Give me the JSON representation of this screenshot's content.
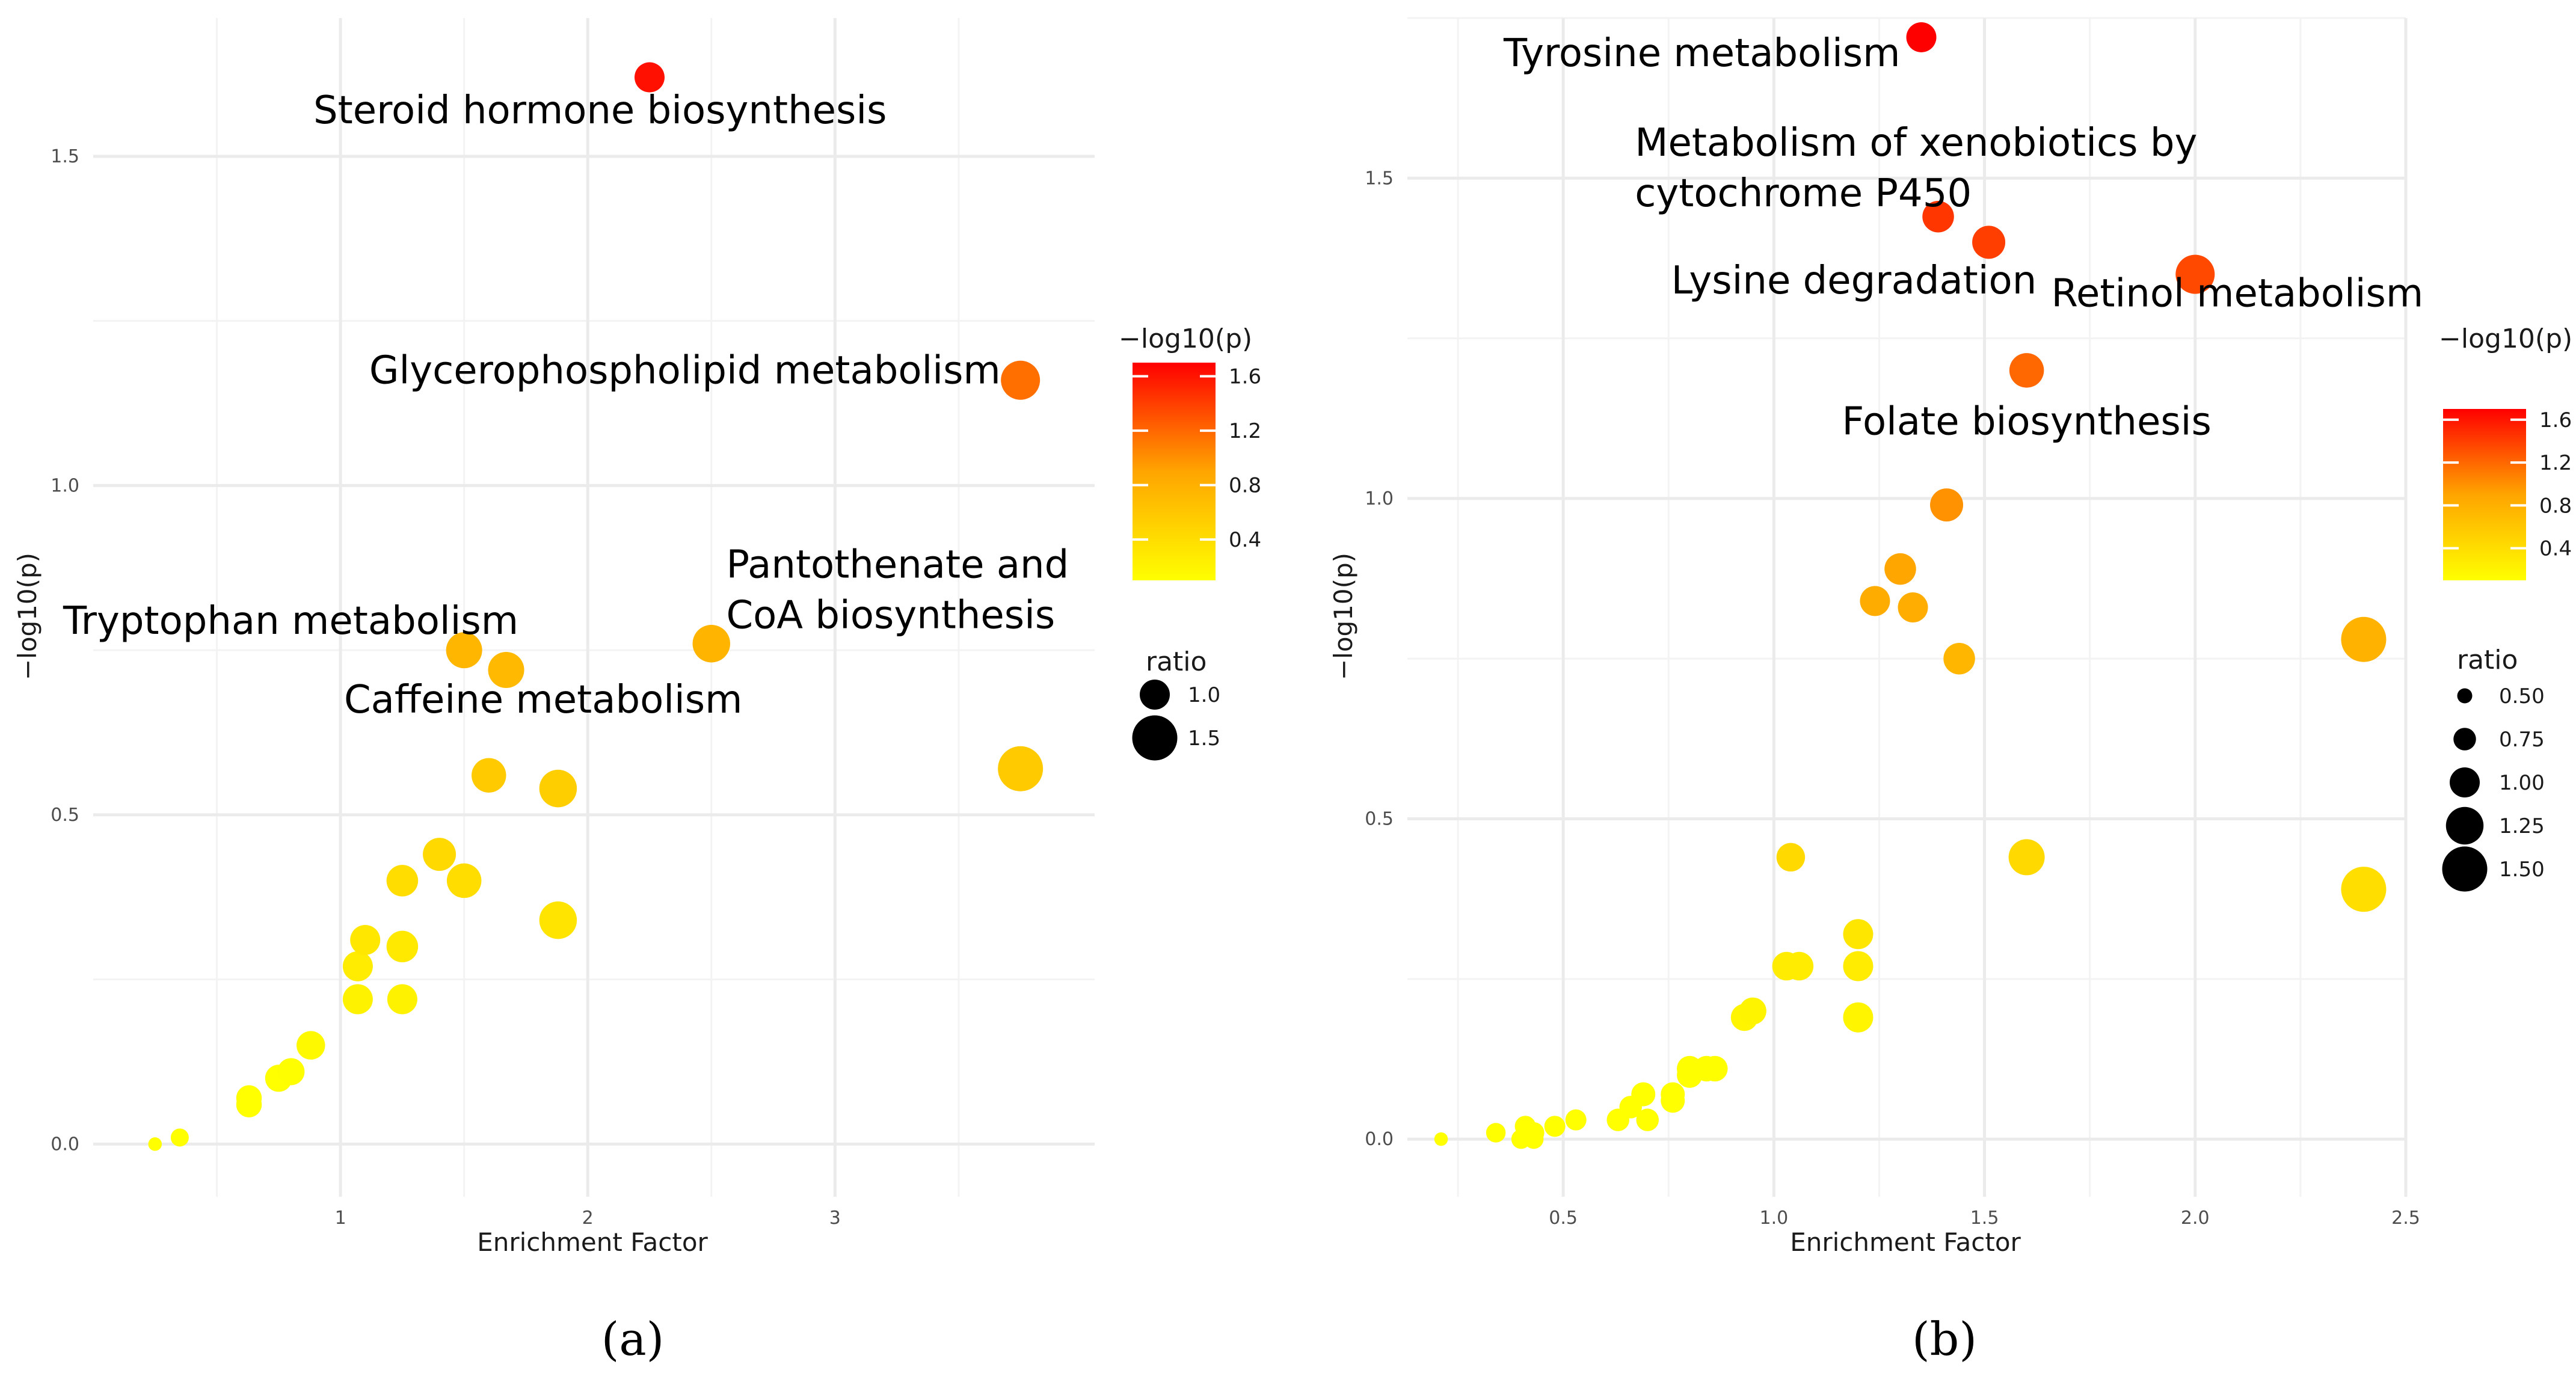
{
  "chart_data": [
    {
      "type": "scatter",
      "panel_label": "(a)",
      "xlabel": "Enrichment Factor",
      "ylabel": "−log10(p)",
      "xlim": [
        0.0,
        4.05
      ],
      "ylim": [
        -0.08,
        1.71
      ],
      "x_ticks": [
        1,
        2,
        3
      ],
      "x_tick_labels": [
        "1",
        "2",
        "3"
      ],
      "y_ticks": [
        0.0,
        0.5,
        1.0,
        1.5
      ],
      "y_tick_labels": [
        "0.0",
        "0.5",
        "1.0",
        "1.5"
      ],
      "color_legend": {
        "title": "−log10(p)",
        "min": 0.1,
        "max": 1.7,
        "ticks": [
          0.4,
          0.8,
          1.2,
          1.6
        ],
        "tick_labels": [
          "0.4",
          "0.8",
          "1.2",
          "1.6"
        ]
      },
      "size_legend": {
        "title": "ratio",
        "values": [
          1.0,
          1.5
        ],
        "labels": [
          "1.0",
          "1.5"
        ]
      },
      "points": [
        {
          "x": 2.25,
          "y": 1.62,
          "ratio": 1.0
        },
        {
          "x": 3.75,
          "y": 1.16,
          "ratio": 1.3
        },
        {
          "x": 2.5,
          "y": 0.76,
          "ratio": 1.25
        },
        {
          "x": 1.5,
          "y": 0.75,
          "ratio": 1.2
        },
        {
          "x": 1.67,
          "y": 0.72,
          "ratio": 1.2
        },
        {
          "x": 3.75,
          "y": 0.57,
          "ratio": 1.5
        },
        {
          "x": 1.6,
          "y": 0.56,
          "ratio": 1.15
        },
        {
          "x": 1.88,
          "y": 0.54,
          "ratio": 1.25
        },
        {
          "x": 1.4,
          "y": 0.44,
          "ratio": 1.1
        },
        {
          "x": 1.25,
          "y": 0.4,
          "ratio": 1.05
        },
        {
          "x": 1.5,
          "y": 0.4,
          "ratio": 1.15
        },
        {
          "x": 1.88,
          "y": 0.34,
          "ratio": 1.25
        },
        {
          "x": 1.1,
          "y": 0.31,
          "ratio": 1.0
        },
        {
          "x": 1.25,
          "y": 0.3,
          "ratio": 1.05
        },
        {
          "x": 1.07,
          "y": 0.27,
          "ratio": 1.0
        },
        {
          "x": 1.07,
          "y": 0.22,
          "ratio": 1.0
        },
        {
          "x": 1.25,
          "y": 0.22,
          "ratio": 1.0
        },
        {
          "x": 0.88,
          "y": 0.15,
          "ratio": 0.95
        },
        {
          "x": 0.8,
          "y": 0.11,
          "ratio": 0.9
        },
        {
          "x": 0.75,
          "y": 0.1,
          "ratio": 0.9
        },
        {
          "x": 0.63,
          "y": 0.07,
          "ratio": 0.85
        },
        {
          "x": 0.63,
          "y": 0.06,
          "ratio": 0.85
        },
        {
          "x": 0.35,
          "y": 0.01,
          "ratio": 0.6
        },
        {
          "x": 0.25,
          "y": 0.0,
          "ratio": 0.45
        }
      ],
      "annotations": [
        {
          "lines": [
            "Steroid hormone biosynthesis"
          ],
          "x": 2.05,
          "y": 1.55,
          "anchor": "middle"
        },
        {
          "lines": [
            "Glycerophospholipid metabolism"
          ],
          "x": 3.67,
          "y": 1.155,
          "anchor": "end"
        },
        {
          "lines": [
            "Pantothenate and",
            "CoA biosynthesis"
          ],
          "x": 2.56,
          "y": 0.86,
          "anchor": "start"
        },
        {
          "lines": [
            "Tryptophan metabolism"
          ],
          "x": 1.72,
          "y": 0.775,
          "anchor": "end"
        },
        {
          "lines": [
            "Caffeine metabolism"
          ],
          "x": 1.82,
          "y": 0.655,
          "anchor": "middle"
        }
      ]
    },
    {
      "type": "scatter",
      "panel_label": "(b)",
      "xlabel": "Enrichment Factor",
      "ylabel": "−log10(p)",
      "xlim": [
        0.13,
        2.5
      ],
      "ylim": [
        -0.09,
        1.75
      ],
      "x_ticks": [
        0.5,
        1.0,
        1.5,
        2.0,
        2.5
      ],
      "x_tick_labels": [
        "0.5",
        "1.0",
        "1.5",
        "2.0",
        "2.5"
      ],
      "y_ticks": [
        0.0,
        0.5,
        1.0,
        1.5
      ],
      "y_tick_labels": [
        "0.0",
        "0.5",
        "1.0",
        "1.5"
      ],
      "color_legend": {
        "title": "−log10(p)",
        "min": 0.1,
        "max": 1.7,
        "ticks": [
          0.4,
          0.8,
          1.2,
          1.6
        ],
        "tick_labels": [
          "0.4",
          "0.8",
          "1.2",
          "1.6"
        ]
      },
      "size_legend": {
        "title": "ratio",
        "values": [
          0.5,
          0.75,
          1.0,
          1.25,
          1.5
        ],
        "labels": [
          "0.50",
          "0.75",
          "1.00",
          "1.25",
          "1.50"
        ]
      },
      "points": [
        {
          "x": 1.35,
          "y": 1.72,
          "ratio": 1.0
        },
        {
          "x": 1.39,
          "y": 1.44,
          "ratio": 1.05
        },
        {
          "x": 1.51,
          "y": 1.4,
          "ratio": 1.1
        },
        {
          "x": 2.0,
          "y": 1.35,
          "ratio": 1.3
        },
        {
          "x": 1.6,
          "y": 1.2,
          "ratio": 1.15
        },
        {
          "x": 1.41,
          "y": 0.99,
          "ratio": 1.1
        },
        {
          "x": 1.3,
          "y": 0.89,
          "ratio": 1.05
        },
        {
          "x": 1.24,
          "y": 0.84,
          "ratio": 1.0
        },
        {
          "x": 1.33,
          "y": 0.83,
          "ratio": 1.0
        },
        {
          "x": 2.4,
          "y": 0.78,
          "ratio": 1.5
        },
        {
          "x": 1.44,
          "y": 0.75,
          "ratio": 1.05
        },
        {
          "x": 1.04,
          "y": 0.44,
          "ratio": 0.95
        },
        {
          "x": 1.6,
          "y": 0.44,
          "ratio": 1.2
        },
        {
          "x": 2.4,
          "y": 0.39,
          "ratio": 1.5
        },
        {
          "x": 1.2,
          "y": 0.32,
          "ratio": 1.0
        },
        {
          "x": 1.03,
          "y": 0.27,
          "ratio": 0.95
        },
        {
          "x": 1.06,
          "y": 0.27,
          "ratio": 0.95
        },
        {
          "x": 1.2,
          "y": 0.27,
          "ratio": 1.0
        },
        {
          "x": 0.95,
          "y": 0.2,
          "ratio": 0.9
        },
        {
          "x": 0.93,
          "y": 0.19,
          "ratio": 0.9
        },
        {
          "x": 1.2,
          "y": 0.19,
          "ratio": 1.0
        },
        {
          "x": 0.86,
          "y": 0.11,
          "ratio": 0.85
        },
        {
          "x": 0.8,
          "y": 0.11,
          "ratio": 0.85
        },
        {
          "x": 0.84,
          "y": 0.11,
          "ratio": 0.85
        },
        {
          "x": 0.8,
          "y": 0.1,
          "ratio": 0.85
        },
        {
          "x": 0.76,
          "y": 0.07,
          "ratio": 0.8
        },
        {
          "x": 0.69,
          "y": 0.07,
          "ratio": 0.8
        },
        {
          "x": 0.76,
          "y": 0.06,
          "ratio": 0.8
        },
        {
          "x": 0.66,
          "y": 0.05,
          "ratio": 0.75
        },
        {
          "x": 0.63,
          "y": 0.03,
          "ratio": 0.75
        },
        {
          "x": 0.7,
          "y": 0.03,
          "ratio": 0.75
        },
        {
          "x": 0.53,
          "y": 0.03,
          "ratio": 0.7
        },
        {
          "x": 0.48,
          "y": 0.02,
          "ratio": 0.7
        },
        {
          "x": 0.43,
          "y": 0.01,
          "ratio": 0.7
        },
        {
          "x": 0.41,
          "y": 0.02,
          "ratio": 0.7
        },
        {
          "x": 0.34,
          "y": 0.01,
          "ratio": 0.65
        },
        {
          "x": 0.4,
          "y": 0.0,
          "ratio": 0.65
        },
        {
          "x": 0.43,
          "y": 0.0,
          "ratio": 0.65
        },
        {
          "x": 0.21,
          "y": 0.0,
          "ratio": 0.45
        }
      ],
      "annotations": [
        {
          "lines": [
            "Tyrosine metabolism"
          ],
          "x": 1.3,
          "y": 1.675,
          "anchor": "end"
        },
        {
          "lines": [
            "Metabolism of xenobiotics by",
            "cytochrome P450"
          ],
          "x": 0.67,
          "y": 1.535,
          "anchor": "start"
        },
        {
          "lines": [
            "Lysine degradation"
          ],
          "x": 1.19,
          "y": 1.32,
          "anchor": "middle"
        },
        {
          "lines": [
            "Retinol metabolism"
          ],
          "x": 2.1,
          "y": 1.3,
          "anchor": "middle"
        },
        {
          "lines": [
            "Folate biosynthesis"
          ],
          "x": 1.6,
          "y": 1.1,
          "anchor": "middle"
        }
      ]
    }
  ]
}
